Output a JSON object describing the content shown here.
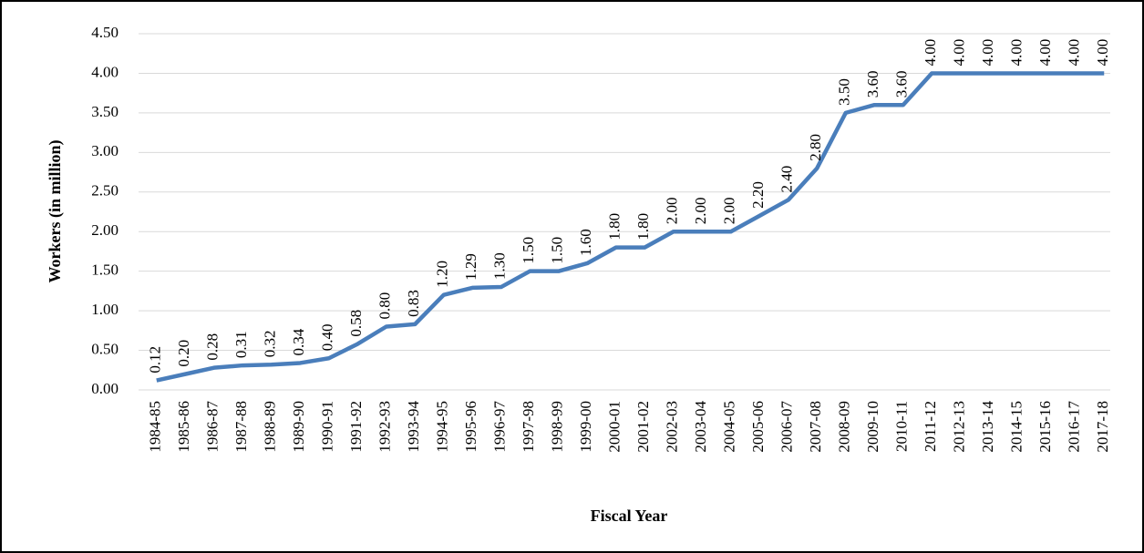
{
  "chart_data": {
    "type": "line",
    "xlabel": "Fiscal Year",
    "ylabel": "Workers (in million)",
    "categories": [
      "1984-85",
      "1985-86",
      "1986-87",
      "1987-88",
      "1988-89",
      "1989-90",
      "1990-91",
      "1991-92",
      "1992-93",
      "1993-94",
      "1994-95",
      "1995-96",
      "1996-97",
      "1997-98",
      "1998-99",
      "1999-00",
      "2000-01",
      "2001-02",
      "2002-03",
      "2003-04",
      "2004-05",
      "2005-06",
      "2006-07",
      "2007-08",
      "2008-09",
      "2009-10",
      "2010-11",
      "2011-12",
      "2012-13",
      "2013-14",
      "2014-15",
      "2015-16",
      "2016-17",
      "2017-18"
    ],
    "values": [
      0.12,
      0.2,
      0.28,
      0.31,
      0.32,
      0.34,
      0.4,
      0.58,
      0.8,
      0.83,
      1.2,
      1.29,
      1.3,
      1.5,
      1.5,
      1.6,
      1.8,
      1.8,
      2,
      2,
      2,
      2.2,
      2.4,
      2.8,
      3.5,
      3.6,
      3.6,
      4,
      4,
      4,
      4,
      4,
      4,
      4
    ],
    "value_labels": [
      "0.12",
      "0.20",
      "0.28",
      "0.31",
      "0.32",
      "0.34",
      "0.40",
      "0.58",
      "0.80",
      "0.83",
      "1.20",
      "1.29",
      "1.30",
      "1.50",
      "1.50",
      "1.60",
      "1.80",
      "1.80",
      "2.00",
      "2.00",
      "2.00",
      "2.20",
      "2.40",
      "2.80",
      "3.50",
      "3.60",
      "3.60",
      "4.00",
      "4.00",
      "4.00",
      "4.00",
      "4.00",
      "4.00",
      "4.00"
    ],
    "color": "#4a7ebb",
    "ylim": [
      0,
      4.5
    ],
    "yticks": [
      {
        "value": 0,
        "label": "0.00"
      },
      {
        "value": 0.5,
        "label": "0.50"
      },
      {
        "value": 1,
        "label": "1.00"
      },
      {
        "value": 1.5,
        "label": "1.50"
      },
      {
        "value": 2,
        "label": "2.00"
      },
      {
        "value": 2.5,
        "label": "2.50"
      },
      {
        "value": 3,
        "label": "3.00"
      },
      {
        "value": 3.5,
        "label": "3.50"
      },
      {
        "value": 4,
        "label": "4.00"
      },
      {
        "value": 4.5,
        "label": "4.50"
      }
    ],
    "grid": true
  }
}
